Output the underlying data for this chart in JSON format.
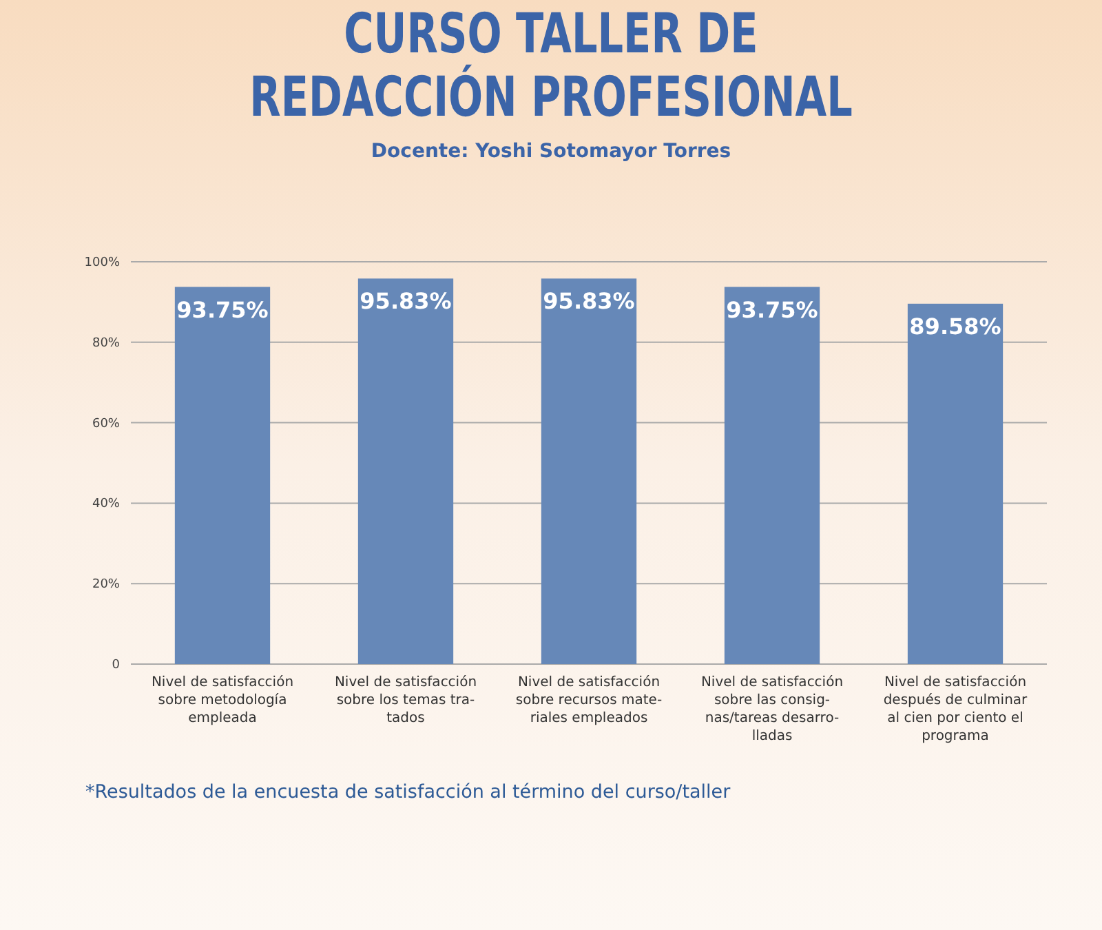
{
  "chart_data": {
    "type": "bar",
    "title": "CURSO TALLER DE\nREDACCIÓN PROFESIONAL",
    "subtitle": "Docente: Yoshi Sotomayor Torres",
    "categories": [
      "Nivel de satisfacción\nsobre metodología\nempleada",
      "Nivel de satisfacción\nsobre los temas tra-\ntados",
      "Nivel de satisfacción\nsobre recursos mate-\nriales empleados",
      "Nivel de satisfacción\nsobre las consig-\nnas/tareas desarro-\nlladas",
      "Nivel de satisfacción\ndespués de culminar\nal cien por ciento el\nprograma"
    ],
    "values": [
      93.75,
      95.83,
      95.83,
      93.75,
      89.58
    ],
    "value_labels": [
      "93.75%",
      "95.83%",
      "95.83%",
      "93.75%",
      "89.58%"
    ],
    "color": "#6688b8",
    "ylim": [
      0,
      100
    ],
    "yticks": [
      0,
      {
        "value": 20,
        "label": "20%"
      },
      {
        "value": 40,
        "label": "40%"
      },
      {
        "value": 60,
        "label": "60%"
      },
      {
        "value": 80,
        "label": "80%"
      },
      {
        "value": 100,
        "label": "100%"
      }
    ],
    "grid": "y",
    "annotations": [
      "*Resultados de la encuesta de satisfacción al término del curso/taller"
    ]
  }
}
